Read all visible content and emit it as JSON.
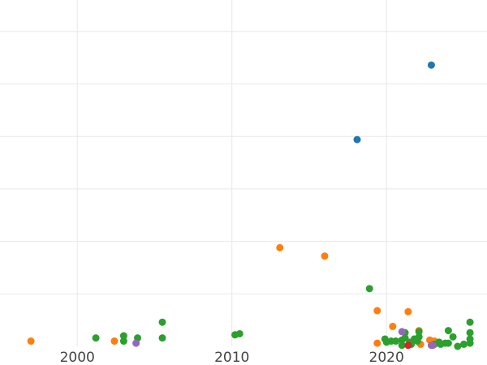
{
  "chart_data": {
    "type": "scatter",
    "title": "",
    "xlabel": "",
    "ylabel": "",
    "xlim": [
      1995,
      2026.5
    ],
    "ylim": [
      0,
      33
    ],
    "x_ticks": [
      2000,
      2010,
      2020
    ],
    "y_gridlines": [
      5,
      10,
      15,
      20,
      25,
      30
    ],
    "grid": true,
    "legend": "none",
    "series": [
      {
        "color": "#1f77b4",
        "points": [
          {
            "x": 2018.1,
            "y": 19.7
          },
          {
            "x": 2022.9,
            "y": 26.8
          }
        ]
      },
      {
        "color": "#ff7f0e",
        "points": [
          {
            "x": 1997.0,
            "y": 0.5
          },
          {
            "x": 2002.4,
            "y": 0.5
          },
          {
            "x": 2013.1,
            "y": 9.4
          },
          {
            "x": 2016.0,
            "y": 8.6
          },
          {
            "x": 2019.4,
            "y": 3.4
          },
          {
            "x": 2019.4,
            "y": 0.3
          },
          {
            "x": 2020.4,
            "y": 1.9
          },
          {
            "x": 2021.4,
            "y": 3.3
          },
          {
            "x": 2022.1,
            "y": 1.5
          },
          {
            "x": 2022.2,
            "y": 0.2
          },
          {
            "x": 2022.8,
            "y": 0.6
          },
          {
            "x": 2023.1,
            "y": 0.5
          }
        ]
      },
      {
        "color": "#2ca02c",
        "points": [
          {
            "x": 2001.2,
            "y": 0.8
          },
          {
            "x": 2003.0,
            "y": 1.0
          },
          {
            "x": 2003.0,
            "y": 0.5
          },
          {
            "x": 2003.9,
            "y": 0.8
          },
          {
            "x": 2005.5,
            "y": 2.3
          },
          {
            "x": 2005.5,
            "y": 0.8
          },
          {
            "x": 2010.2,
            "y": 1.1
          },
          {
            "x": 2010.5,
            "y": 1.2
          },
          {
            "x": 2018.9,
            "y": 5.5
          },
          {
            "x": 2019.9,
            "y": 0.7
          },
          {
            "x": 2020.0,
            "y": 0.4
          },
          {
            "x": 2020.3,
            "y": 0.5
          },
          {
            "x": 2020.6,
            "y": 0.5
          },
          {
            "x": 2021.0,
            "y": 0.6
          },
          {
            "x": 2021.0,
            "y": 0.1
          },
          {
            "x": 2021.2,
            "y": 1.3
          },
          {
            "x": 2021.2,
            "y": 0.8
          },
          {
            "x": 2021.5,
            "y": 0.4
          },
          {
            "x": 2021.6,
            "y": 0.2
          },
          {
            "x": 2021.8,
            "y": 0.7
          },
          {
            "x": 2022.0,
            "y": 0.5
          },
          {
            "x": 2022.1,
            "y": 1.4
          },
          {
            "x": 2022.1,
            "y": 0.9
          },
          {
            "x": 2023.1,
            "y": 0.2
          },
          {
            "x": 2023.4,
            "y": 0.4
          },
          {
            "x": 2023.5,
            "y": 0.2
          },
          {
            "x": 2023.8,
            "y": 0.3
          },
          {
            "x": 2024.0,
            "y": 1.5
          },
          {
            "x": 2024.0,
            "y": 0.3
          },
          {
            "x": 2024.3,
            "y": 0.9
          },
          {
            "x": 2024.6,
            "y": 0.0
          },
          {
            "x": 2025.0,
            "y": 0.2
          },
          {
            "x": 2025.4,
            "y": 2.3
          },
          {
            "x": 2025.4,
            "y": 1.3
          },
          {
            "x": 2025.4,
            "y": 0.7
          },
          {
            "x": 2025.4,
            "y": 0.3
          }
        ]
      },
      {
        "color": "#d62728",
        "points": [
          {
            "x": 2021.4,
            "y": 0.1
          }
        ]
      },
      {
        "color": "#9467bd",
        "points": [
          {
            "x": 2003.8,
            "y": 0.3
          },
          {
            "x": 2021.0,
            "y": 1.4
          },
          {
            "x": 2022.9,
            "y": 0.1
          },
          {
            "x": 2023.0,
            "y": 0.1
          }
        ]
      }
    ]
  }
}
